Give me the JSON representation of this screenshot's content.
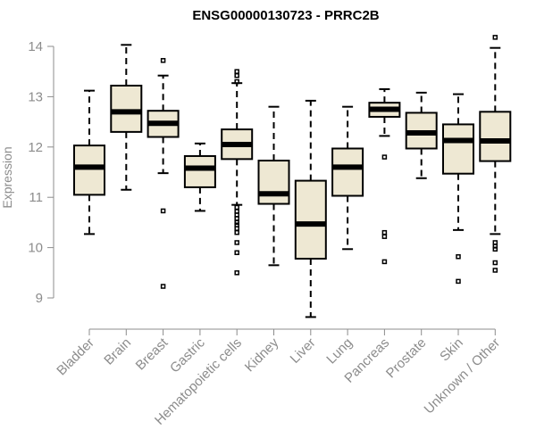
{
  "chart_data": {
    "type": "boxplot",
    "title": "ENSG00000130723 - PRRC2B",
    "xlabel": "",
    "ylabel": "Expression",
    "ylim": [
      8.55,
      14.2
    ],
    "yticks": [
      9,
      10,
      11,
      12,
      13,
      14
    ],
    "ytick_labels": [
      "9",
      "10",
      "11",
      "12",
      "13",
      "14"
    ],
    "categories": [
      "Bladder",
      "Brain",
      "Breast",
      "Gastric",
      "Hematopoietic cells",
      "Kidney",
      "Liver",
      "Lung",
      "Pancreas",
      "Prostate",
      "Skin",
      "Unknown / Other"
    ],
    "boxes": [
      {
        "category": "Bladder",
        "whisker_low": 10.27,
        "q1": 11.05,
        "median": 11.6,
        "q3": 12.03,
        "whisker_high": 13.12,
        "outliers": []
      },
      {
        "category": "Brain",
        "whisker_low": 11.15,
        "q1": 12.3,
        "median": 12.7,
        "q3": 13.22,
        "whisker_high": 14.03,
        "outliers": []
      },
      {
        "category": "Breast",
        "whisker_low": 11.48,
        "q1": 12.2,
        "median": 12.47,
        "q3": 12.72,
        "whisker_high": 13.42,
        "outliers": [
          13.72,
          10.73,
          9.23
        ]
      },
      {
        "category": "Gastric",
        "whisker_low": 10.73,
        "q1": 11.2,
        "median": 11.58,
        "q3": 11.82,
        "whisker_high": 12.07,
        "outliers": []
      },
      {
        "category": "Hematopoietic cells",
        "whisker_low": 10.85,
        "q1": 11.76,
        "median": 12.05,
        "q3": 12.35,
        "whisker_high": 13.27,
        "outliers": [
          13.5,
          13.42,
          13.3,
          10.8,
          10.72,
          10.65,
          10.58,
          10.5,
          10.45,
          10.38,
          10.3,
          10.1,
          9.9,
          9.5
        ]
      },
      {
        "category": "Kidney",
        "whisker_low": 9.65,
        "q1": 10.87,
        "median": 11.07,
        "q3": 11.73,
        "whisker_high": 12.8,
        "outliers": []
      },
      {
        "category": "Liver",
        "whisker_low": 8.62,
        "q1": 9.78,
        "median": 10.47,
        "q3": 11.33,
        "whisker_high": 12.92,
        "outliers": []
      },
      {
        "category": "Lung",
        "whisker_low": 9.97,
        "q1": 11.03,
        "median": 11.6,
        "q3": 11.97,
        "whisker_high": 12.8,
        "outliers": []
      },
      {
        "category": "Pancreas",
        "whisker_low": 12.22,
        "q1": 12.6,
        "median": 12.75,
        "q3": 12.88,
        "whisker_high": 13.15,
        "outliers": [
          11.8,
          10.3,
          10.22,
          9.72
        ]
      },
      {
        "category": "Prostate",
        "whisker_low": 11.38,
        "q1": 11.97,
        "median": 12.28,
        "q3": 12.68,
        "whisker_high": 13.08,
        "outliers": []
      },
      {
        "category": "Skin",
        "whisker_low": 10.35,
        "q1": 11.47,
        "median": 12.13,
        "q3": 12.45,
        "whisker_high": 13.05,
        "outliers": [
          9.82,
          9.33
        ]
      },
      {
        "category": "Unknown / Other",
        "whisker_low": 10.27,
        "q1": 11.72,
        "median": 12.12,
        "q3": 12.7,
        "whisker_high": 13.97,
        "outliers": [
          14.18,
          10.1,
          10.03,
          9.97,
          9.7,
          9.55
        ]
      }
    ],
    "colors": {
      "box_fill": "#eee8d3",
      "box_stroke": "#000000",
      "axis": "#8c8c8c",
      "title": "#000000"
    },
    "grid": false,
    "legend": "none"
  }
}
